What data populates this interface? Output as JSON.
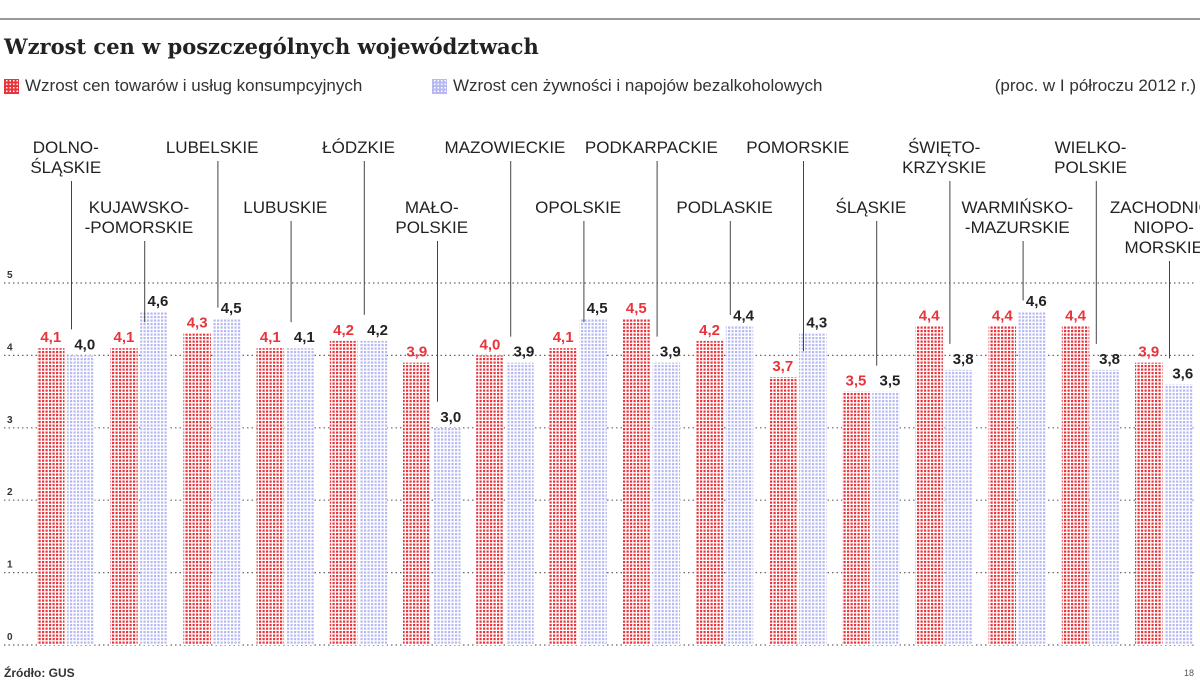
{
  "title": "Wzrost cen w poszczególnych województwach",
  "unit_note": "(proc. w I półroczu 2012 r.)",
  "source": "Źródło: GUS",
  "page_number": "18",
  "legend": {
    "series1": "Wzrost cen towarów i usług konsumpcyjnych",
    "series2": "Wzrost cen żywności i napojów bezalkoholowych"
  },
  "colors": {
    "series1": "#e8343a",
    "series2": "#b7b9f2",
    "label1": "#e8343a",
    "label2": "#222222",
    "grid": "#666666"
  },
  "chart_data": {
    "type": "bar",
    "categories": [
      {
        "lines": [
          "DOLNO-",
          "ŚLĄSKIE"
        ]
      },
      {
        "lines": [
          "KUJAWSKO-",
          "-POMORSKIE"
        ]
      },
      {
        "lines": [
          "LUBELSKIE"
        ]
      },
      {
        "lines": [
          "LUBUSKIE"
        ]
      },
      {
        "lines": [
          "ŁÓDZKIE"
        ]
      },
      {
        "lines": [
          "MAŁO-",
          "POLSKIE"
        ]
      },
      {
        "lines": [
          "MAZOWIECKIE"
        ]
      },
      {
        "lines": [
          "OPOLSKIE"
        ]
      },
      {
        "lines": [
          "PODKARPACKIE"
        ]
      },
      {
        "lines": [
          "PODLASKIE"
        ]
      },
      {
        "lines": [
          "POMORSKIE"
        ]
      },
      {
        "lines": [
          "ŚLĄSKIE"
        ]
      },
      {
        "lines": [
          "ŚWIĘTO-",
          "KRZYSKIE"
        ]
      },
      {
        "lines": [
          "WARMIŃSKO-",
          "-MAZURSKIE"
        ]
      },
      {
        "lines": [
          "WIELKO-",
          "POLSKIE"
        ]
      },
      {
        "lines": [
          "ZACHODNIO-",
          "NIOPO-",
          "MORSKIE"
        ]
      }
    ],
    "series": [
      {
        "name": "Wzrost cen towarów i usług konsumpcyjnych",
        "values": [
          4.1,
          4.1,
          4.3,
          4.1,
          4.2,
          3.9,
          4.0,
          4.1,
          4.5,
          4.2,
          3.7,
          3.5,
          4.4,
          4.4,
          4.4,
          3.9
        ],
        "labels": [
          "4,1",
          "4,1",
          "4,3",
          "4,1",
          "4,2",
          "3,9",
          "4,0",
          "4,1",
          "4,5",
          "4,2",
          "3,7",
          "3,5",
          "4,4",
          "4,4",
          "4,4",
          "3,9"
        ]
      },
      {
        "name": "Wzrost cen żywności i napojów bezalkoholowych",
        "values": [
          4.0,
          4.6,
          4.5,
          4.1,
          4.2,
          3.0,
          3.9,
          4.5,
          3.9,
          4.4,
          4.3,
          3.5,
          3.8,
          4.6,
          3.8,
          3.6
        ],
        "labels": [
          "4,0",
          "4,6",
          "4,5",
          "4,1",
          "4,2",
          "3,0",
          "3,9",
          "4,5",
          "3,9",
          "4,4",
          "4,3",
          "3,5",
          "3,8",
          "4,6",
          "3,8",
          "3,6"
        ]
      }
    ],
    "yticks": [
      "0",
      "1",
      "2",
      "3",
      "4",
      "5"
    ],
    "ylim": [
      0,
      5
    ],
    "grid": true,
    "legend_position": "top-left",
    "data_labels": true
  }
}
